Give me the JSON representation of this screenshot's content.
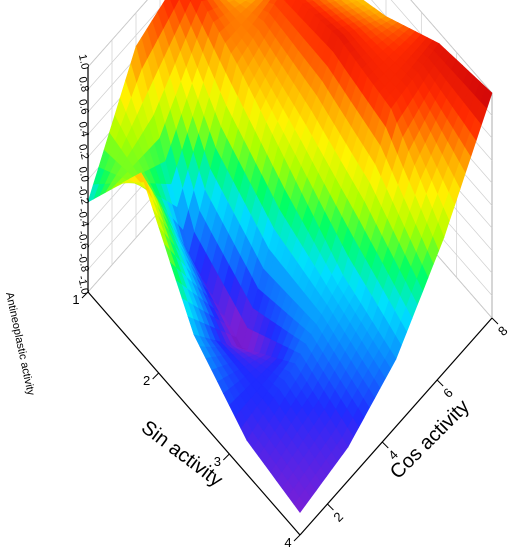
{
  "chart_data": {
    "type": "surface3d",
    "title": "",
    "xlabel": "Sin activity",
    "ylabel": "Cos activity",
    "zlabel": "Antineoplastic activity",
    "x_ticks": [
      "1",
      "2",
      "3",
      "4"
    ],
    "y_ticks": [
      "2",
      "4",
      "6",
      "8"
    ],
    "z_ticks": [
      "1.0",
      "0.8",
      "0.6",
      "0.4",
      "0.2",
      "0.0",
      "-0.2",
      "-0.4",
      "-0.6",
      "-0.8",
      "-1.0"
    ],
    "xlim": [
      1,
      4
    ],
    "ylim": [
      1,
      8
    ],
    "zlim": [
      -1.0,
      1.0
    ],
    "colormap": [
      "#5b0fa8",
      "#7a1fd6",
      "#1f2bff",
      "#0a8cff",
      "#00e0ff",
      "#00ff66",
      "#a8ff00",
      "#fff500",
      "#ffa500",
      "#ff2a00",
      "#c8000a"
    ],
    "x": [
      1,
      1.75,
      2.5,
      3.25,
      4
    ],
    "y": [
      1,
      2.75,
      4.5,
      6.25,
      8
    ],
    "z": [
      [
        -0.2,
        0.7,
        0.9,
        0.2,
        -0.5
      ],
      [
        0.6,
        -0.6,
        0.6,
        0.8,
        0.4
      ],
      [
        -0.3,
        -0.9,
        0.2,
        0.9,
        0.6
      ],
      [
        -0.7,
        -0.5,
        -0.2,
        0.8,
        0.9
      ],
      [
        -0.8,
        -0.7,
        -0.4,
        0.2,
        1.0
      ]
    ],
    "grid": true
  }
}
